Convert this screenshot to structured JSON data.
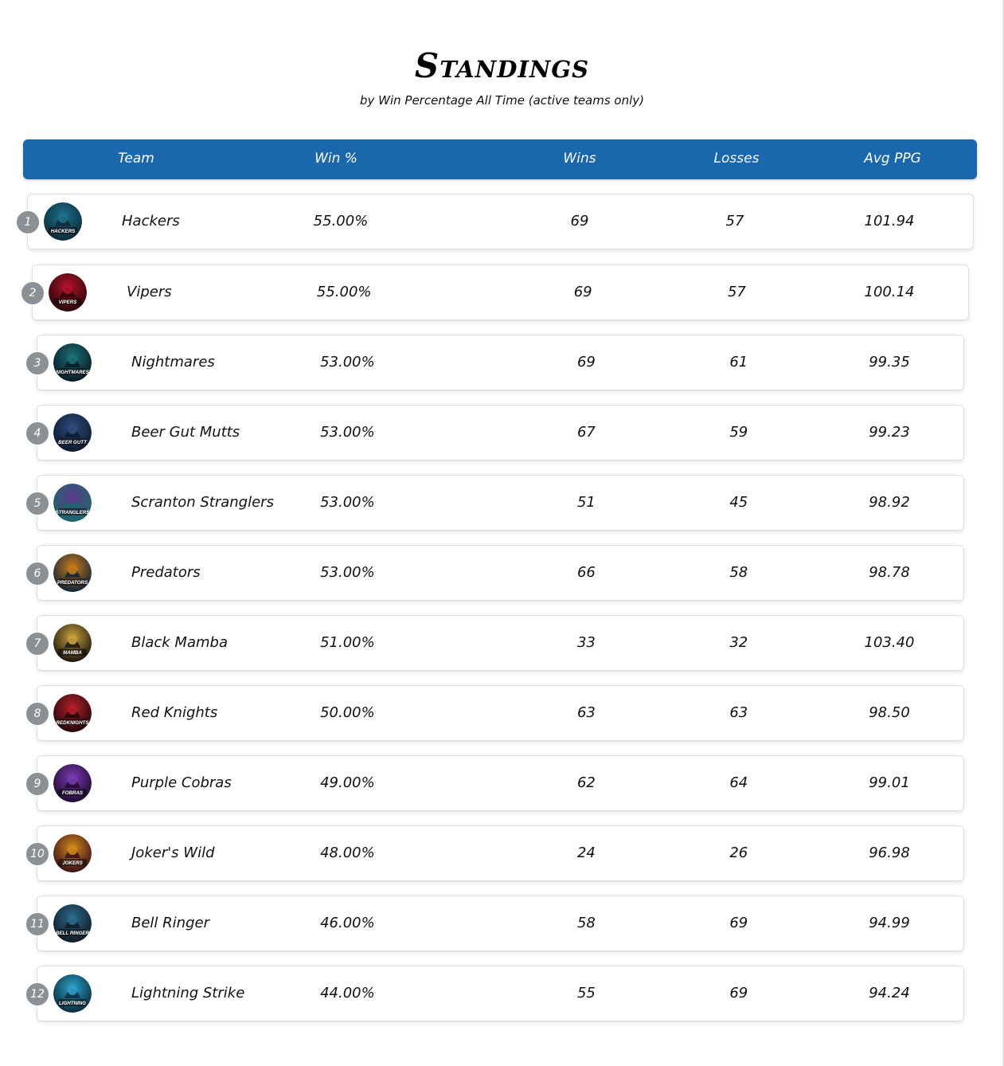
{
  "page": {
    "title": "Standings",
    "subtitle": "by Win Percentage All Time (active teams only)"
  },
  "columns": {
    "team": "Team",
    "win_pct": "Win %",
    "wins": "Wins",
    "losses": "Losses",
    "avg_ppg": "Avg PPG"
  },
  "teams": [
    {
      "rank": "1",
      "name": "Hackers",
      "win_pct": "55.00%",
      "wins": "69",
      "losses": "57",
      "avg_ppg": "101.94",
      "logo_text": "HACKERS",
      "logo_colors": [
        "#1d6f8a",
        "#0c2a3a"
      ]
    },
    {
      "rank": "2",
      "name": "Vipers",
      "win_pct": "55.00%",
      "wins": "69",
      "losses": "57",
      "avg_ppg": "100.14",
      "logo_text": "VIPERS",
      "logo_colors": [
        "#b0142a",
        "#2a0508"
      ]
    },
    {
      "rank": "3",
      "name": "Nightmares",
      "win_pct": "53.00%",
      "wins": "69",
      "losses": "61",
      "avg_ppg": "99.35",
      "logo_text": "NIGHTMARES",
      "logo_colors": [
        "#1d6f7a",
        "#061a22"
      ]
    },
    {
      "rank": "4",
      "name": "Beer Gut Mutts",
      "win_pct": "53.00%",
      "wins": "67",
      "losses": "59",
      "avg_ppg": "99.23",
      "logo_text": "BEER GUTT",
      "logo_colors": [
        "#2d4a7a",
        "#0d1a30"
      ]
    },
    {
      "rank": "5",
      "name": "Scranton Stranglers",
      "win_pct": "53.00%",
      "wins": "51",
      "losses": "45",
      "avg_ppg": "98.92",
      "logo_text": "STRANGLERS",
      "logo_colors": [
        "#5a3a8a",
        "#1a6a6a"
      ]
    },
    {
      "rank": "6",
      "name": "Predators",
      "win_pct": "53.00%",
      "wins": "66",
      "losses": "58",
      "avg_ppg": "98.78",
      "logo_text": "PREDATORS",
      "logo_colors": [
        "#c77a1a",
        "#0f2338"
      ]
    },
    {
      "rank": "7",
      "name": "Black Mamba",
      "win_pct": "51.00%",
      "wins": "33",
      "losses": "32",
      "avg_ppg": "103.40",
      "logo_text": "MAMBA",
      "logo_colors": [
        "#c9a23a",
        "#1a1410"
      ]
    },
    {
      "rank": "8",
      "name": "Red Knights",
      "win_pct": "50.00%",
      "wins": "63",
      "losses": "63",
      "avg_ppg": "98.50",
      "logo_text": "REDKNIGHTS",
      "logo_colors": [
        "#b3202a",
        "#220608"
      ]
    },
    {
      "rank": "9",
      "name": "Purple Cobras",
      "win_pct": "49.00%",
      "wins": "62",
      "losses": "64",
      "avg_ppg": "99.01",
      "logo_text": "FOBRAS",
      "logo_colors": [
        "#7a3ab0",
        "#1e0a30"
      ]
    },
    {
      "rank": "10",
      "name": "Joker's Wild",
      "win_pct": "48.00%",
      "wins": "24",
      "losses": "26",
      "avg_ppg": "96.98",
      "logo_text": "JOKERS",
      "logo_colors": [
        "#d08a1a",
        "#3a0e1a"
      ]
    },
    {
      "rank": "11",
      "name": "Bell Ringer",
      "win_pct": "46.00%",
      "wins": "58",
      "losses": "69",
      "avg_ppg": "94.99",
      "logo_text": "BELL RINGER",
      "logo_colors": [
        "#2a6a8a",
        "#101a24"
      ]
    },
    {
      "rank": "12",
      "name": "Lightning Strike",
      "win_pct": "44.00%",
      "wins": "55",
      "losses": "69",
      "avg_ppg": "94.24",
      "logo_text": "LIGHTNING",
      "logo_colors": [
        "#2aa0c8",
        "#0a2a3a"
      ]
    }
  ],
  "colors": {
    "header_bg": "#1a67ad",
    "rank_badge": "#8b9096"
  }
}
